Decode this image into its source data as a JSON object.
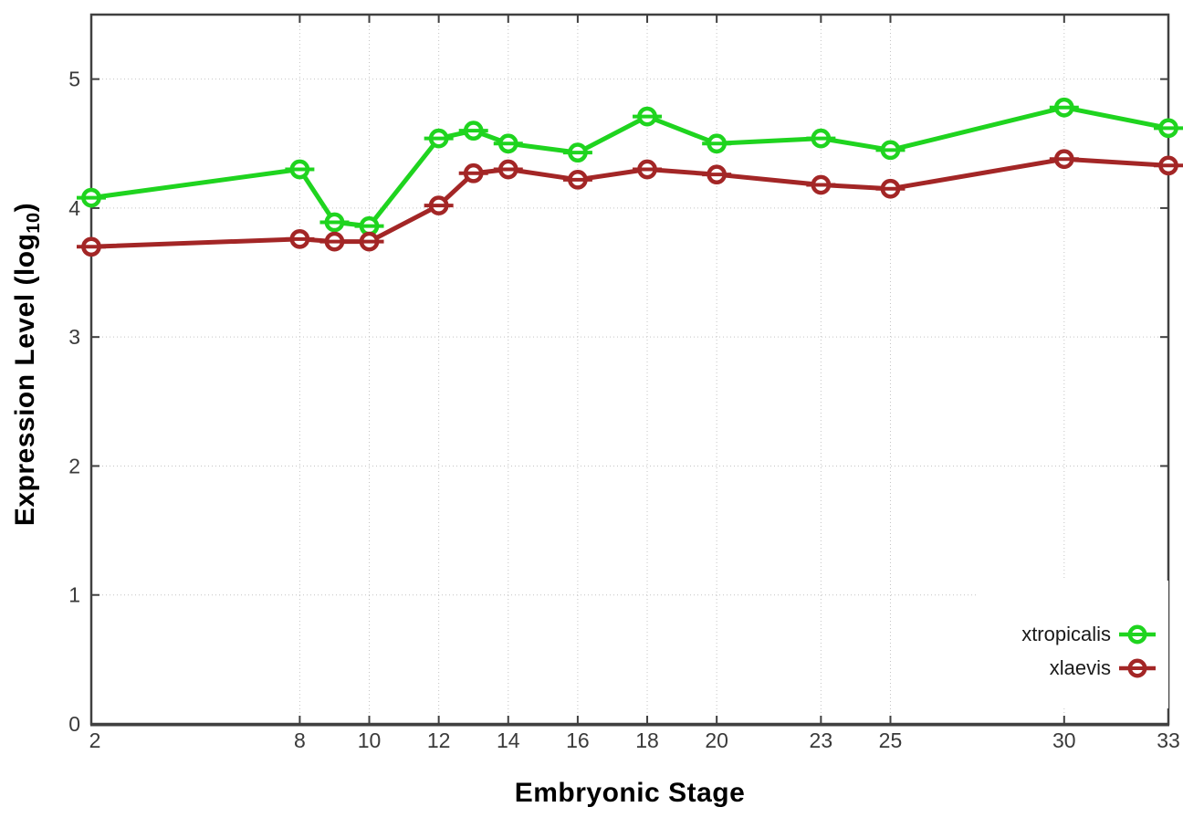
{
  "chart_data": {
    "type": "line",
    "title": "",
    "xlabel": "Embryonic Stage",
    "ylabel": "Expression Level (log10)",
    "ylabel_text": "Expression Level (log",
    "ylabel_sub": "10",
    "ylabel_close": ")",
    "x": [
      2,
      8,
      9,
      10,
      12,
      13,
      14,
      16,
      18,
      20,
      23,
      25,
      30,
      33
    ],
    "x_tick_labels": [
      "2",
      "8",
      "10",
      "12",
      "14",
      "16",
      "18",
      "20",
      "23",
      "25",
      "30",
      "33"
    ],
    "x_ticks": [
      2,
      8,
      10,
      12,
      14,
      16,
      18,
      20,
      23,
      25,
      30,
      33
    ],
    "y_tick_labels": [
      "0",
      "1",
      "2",
      "3",
      "4",
      "5"
    ],
    "y_ticks": [
      0,
      1,
      2,
      3,
      4,
      5
    ],
    "xlim": [
      2,
      33
    ],
    "ylim": [
      0,
      5.5
    ],
    "grid": true,
    "legend_position": "bottom-right",
    "series": [
      {
        "name": "xtropicalis",
        "color": "#1fd41f",
        "values": [
          4.08,
          4.3,
          3.89,
          3.86,
          4.54,
          4.6,
          4.5,
          4.43,
          4.71,
          4.5,
          4.54,
          4.45,
          4.78,
          4.62
        ]
      },
      {
        "name": "xlaevis",
        "color": "#a32626",
        "values": [
          3.7,
          3.76,
          3.74,
          3.74,
          4.02,
          4.27,
          4.3,
          4.22,
          4.3,
          4.26,
          4.18,
          4.15,
          4.38,
          4.33
        ]
      }
    ],
    "style": {
      "background": "#ffffff",
      "border_color": "#404040",
      "grid_color": "#c4c4c4",
      "tick_label_color": "#3a3a3a",
      "marker": "open-circle-with-horizontal-bar"
    }
  }
}
